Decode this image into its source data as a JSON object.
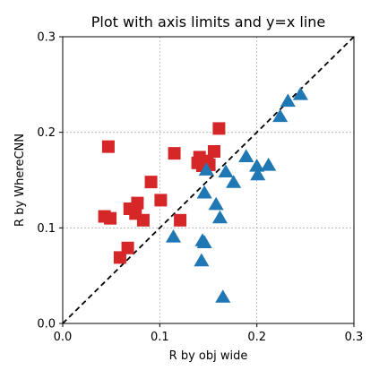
{
  "chart_data": {
    "type": "scatter",
    "title": "Plot with axis limits and y=x line",
    "xlabel": "R by obj wide",
    "ylabel": "R by WhereCNN",
    "xlim": [
      0.0,
      0.3
    ],
    "ylim": [
      0.0,
      0.3
    ],
    "grid": true,
    "x_ticks": [
      "0.0",
      "0.1",
      "0.2",
      "0.3"
    ],
    "y_ticks": [
      "0.0",
      "0.1",
      "0.2",
      "0.3"
    ],
    "reference_line": {
      "type": "y=x",
      "style": "dashed",
      "color": "#000000"
    },
    "series": [
      {
        "marker": "square",
        "color": "#d62728",
        "points": [
          [
            0.047,
            0.185
          ],
          [
            0.043,
            0.112
          ],
          [
            0.049,
            0.11
          ],
          [
            0.059,
            0.069
          ],
          [
            0.067,
            0.079
          ],
          [
            0.069,
            0.12
          ],
          [
            0.075,
            0.115
          ],
          [
            0.077,
            0.126
          ],
          [
            0.083,
            0.108
          ],
          [
            0.091,
            0.148
          ],
          [
            0.101,
            0.129
          ],
          [
            0.115,
            0.178
          ],
          [
            0.121,
            0.108
          ],
          [
            0.139,
            0.168
          ],
          [
            0.141,
            0.174
          ],
          [
            0.144,
            0.165
          ],
          [
            0.149,
            0.17
          ],
          [
            0.151,
            0.166
          ],
          [
            0.156,
            0.18
          ],
          [
            0.161,
            0.204
          ]
        ]
      },
      {
        "marker": "triangle",
        "color": "#1f77b4",
        "points": [
          [
            0.114,
            0.09
          ],
          [
            0.143,
            0.065
          ],
          [
            0.144,
            0.086
          ],
          [
            0.146,
            0.084
          ],
          [
            0.146,
            0.136
          ],
          [
            0.148,
            0.16
          ],
          [
            0.158,
            0.124
          ],
          [
            0.162,
            0.11
          ],
          [
            0.165,
            0.027
          ],
          [
            0.168,
            0.158
          ],
          [
            0.176,
            0.147
          ],
          [
            0.189,
            0.174
          ],
          [
            0.2,
            0.164
          ],
          [
            0.201,
            0.155
          ],
          [
            0.212,
            0.165
          ],
          [
            0.224,
            0.216
          ],
          [
            0.232,
            0.232
          ],
          [
            0.245,
            0.239
          ]
        ]
      }
    ]
  }
}
